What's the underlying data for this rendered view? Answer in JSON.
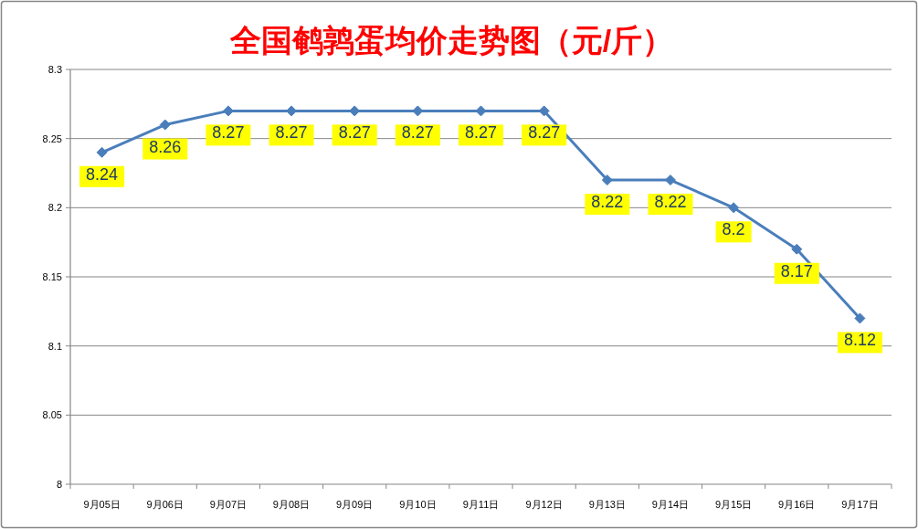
{
  "chart_data": {
    "type": "line",
    "title": "全国鹌鹑蛋均价走势图（元/斤）",
    "categories": [
      "9月05日",
      "9月06日",
      "9月07日",
      "9月08日",
      "9月09日",
      "9月10日",
      "9月11日",
      "9月12日",
      "9月13日",
      "9月14日",
      "9月15日",
      "9月16日",
      "9月17日"
    ],
    "series": [
      {
        "color": "#4a7ebb",
        "values": [
          8.24,
          8.26,
          8.27,
          8.27,
          8.27,
          8.27,
          8.27,
          8.27,
          8.22,
          8.22,
          8.2,
          8.17,
          8.12
        ]
      }
    ],
    "ylim": [
      8,
      8.3
    ],
    "yticks": [
      8,
      8.05,
      8.1,
      8.15,
      8.2,
      8.25,
      8.3
    ],
    "grid": "y",
    "marker": "diamond",
    "line_style": "solid",
    "data_labels": true
  }
}
